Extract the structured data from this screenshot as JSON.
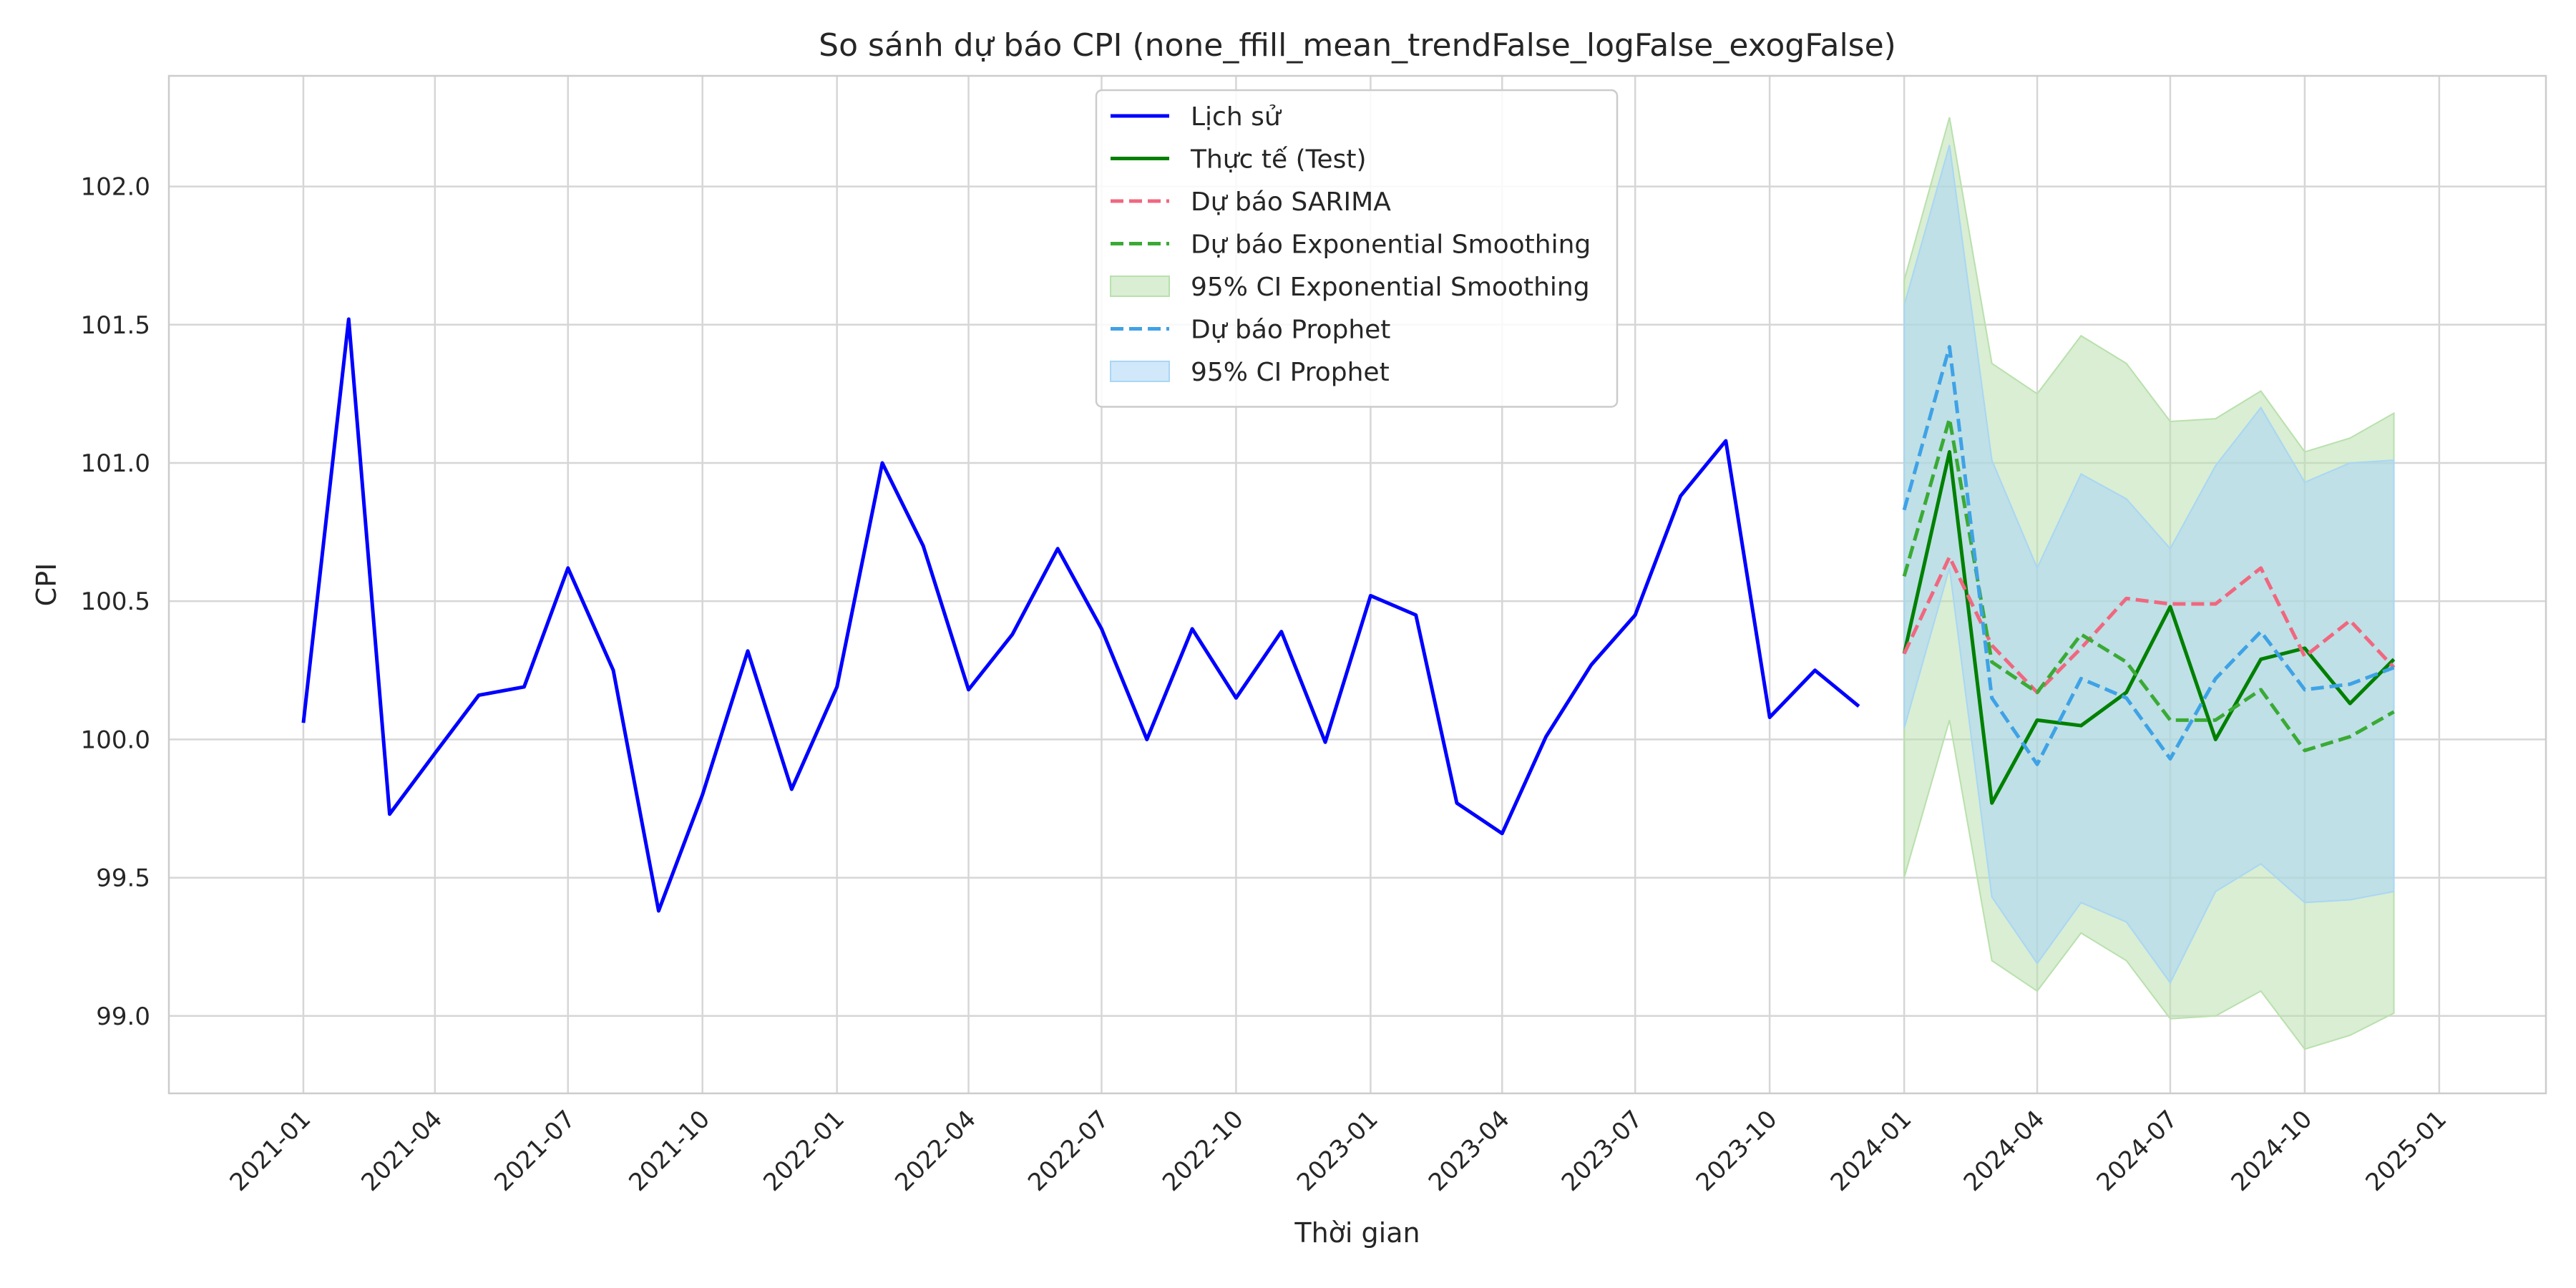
{
  "chart_data": {
    "type": "line",
    "title": "So sánh dự báo CPI (none_ffill_mean_trendFalse_logFalse_exogFalse)",
    "xlabel": "Thời gian",
    "ylabel": "CPI",
    "xlim": [
      "2020-10-01",
      "2025-03-15"
    ],
    "ylim": [
      98.72,
      102.4
    ],
    "grid": true,
    "legend_position": "top-center",
    "x_ticks": [
      "2021-01",
      "2021-04",
      "2021-07",
      "2021-10",
      "2022-01",
      "2022-04",
      "2022-07",
      "2022-10",
      "2023-01",
      "2023-04",
      "2023-07",
      "2023-10",
      "2024-01",
      "2024-04",
      "2024-07",
      "2024-10",
      "2025-01"
    ],
    "y_ticks": [
      99.0,
      99.5,
      100.0,
      100.5,
      101.0,
      101.5,
      102.0
    ],
    "series": [
      {
        "name": "Lịch sử",
        "style": "solid",
        "color": "#0000ff",
        "x": [
          "2021-01",
          "2021-02",
          "2021-03",
          "2021-04",
          "2021-05",
          "2021-06",
          "2021-07",
          "2021-08",
          "2021-09",
          "2021-10",
          "2021-11",
          "2021-12",
          "2022-01",
          "2022-02",
          "2022-03",
          "2022-04",
          "2022-05",
          "2022-06",
          "2022-07",
          "2022-08",
          "2022-09",
          "2022-10",
          "2022-11",
          "2022-12",
          "2023-01",
          "2023-02",
          "2023-03",
          "2023-04",
          "2023-05",
          "2023-06",
          "2023-07",
          "2023-08",
          "2023-09",
          "2023-10",
          "2023-11",
          "2023-12"
        ],
        "values": [
          100.06,
          101.52,
          99.73,
          99.95,
          100.16,
          100.19,
          100.62,
          100.25,
          99.38,
          99.8,
          100.32,
          99.82,
          100.19,
          101.0,
          100.7,
          100.18,
          100.38,
          100.69,
          100.4,
          100.0,
          100.4,
          100.15,
          100.39,
          99.99,
          100.52,
          100.45,
          99.77,
          99.66,
          100.01,
          100.27,
          100.45,
          100.88,
          101.08,
          100.08,
          100.25,
          100.12
        ]
      },
      {
        "name": "Thực tế (Test)",
        "style": "solid",
        "color": "#008000",
        "x": [
          "2024-01",
          "2024-02",
          "2024-03",
          "2024-04",
          "2024-05",
          "2024-06",
          "2024-07",
          "2024-08",
          "2024-09",
          "2024-10",
          "2024-11",
          "2024-12"
        ],
        "values": [
          100.31,
          101.04,
          99.77,
          100.07,
          100.05,
          100.17,
          100.48,
          100.0,
          100.29,
          100.33,
          100.13,
          100.29
        ]
      },
      {
        "name": "Dự báo SARIMA",
        "style": "dashed",
        "color": "#f0677f",
        "x": [
          "2024-01",
          "2024-02",
          "2024-03",
          "2024-04",
          "2024-05",
          "2024-06",
          "2024-07",
          "2024-08",
          "2024-09",
          "2024-10",
          "2024-11",
          "2024-12"
        ],
        "values": [
          100.31,
          100.66,
          100.34,
          100.17,
          100.33,
          100.51,
          100.49,
          100.49,
          100.62,
          100.3,
          100.43,
          100.26
        ]
      },
      {
        "name": "Dự báo Exponential Smoothing",
        "style": "dashed",
        "color": "#3aaa35",
        "x": [
          "2024-01",
          "2024-02",
          "2024-03",
          "2024-04",
          "2024-05",
          "2024-06",
          "2024-07",
          "2024-08",
          "2024-09",
          "2024-10",
          "2024-11",
          "2024-12"
        ],
        "values": [
          100.59,
          101.16,
          100.28,
          100.17,
          100.38,
          100.28,
          100.07,
          100.07,
          100.18,
          99.96,
          100.01,
          100.1
        ]
      },
      {
        "name": "Dự báo Prophet",
        "style": "dashed",
        "color": "#3fa2e6",
        "x": [
          "2024-01",
          "2024-02",
          "2024-03",
          "2024-04",
          "2024-05",
          "2024-06",
          "2024-07",
          "2024-08",
          "2024-09",
          "2024-10",
          "2024-11",
          "2024-12"
        ],
        "values": [
          100.83,
          101.42,
          100.15,
          99.91,
          100.22,
          100.15,
          99.93,
          100.22,
          100.39,
          100.18,
          100.2,
          100.26
        ]
      }
    ],
    "bands": [
      {
        "name": "95% CI Exponential Smoothing",
        "color": "#b9e0ad",
        "x": [
          "2024-01",
          "2024-02",
          "2024-03",
          "2024-04",
          "2024-05",
          "2024-06",
          "2024-07",
          "2024-08",
          "2024-09",
          "2024-10",
          "2024-11",
          "2024-12"
        ],
        "lower": [
          99.5,
          100.07,
          99.2,
          99.09,
          99.3,
          99.2,
          98.99,
          99.0,
          99.09,
          98.88,
          98.93,
          99.01
        ],
        "upper": [
          101.66,
          102.25,
          101.36,
          101.25,
          101.46,
          101.36,
          101.15,
          101.16,
          101.26,
          101.04,
          101.09,
          101.18
        ]
      },
      {
        "name": "95% CI Prophet",
        "color": "#a9d6f5",
        "x": [
          "2024-01",
          "2024-02",
          "2024-03",
          "2024-04",
          "2024-05",
          "2024-06",
          "2024-07",
          "2024-08",
          "2024-09",
          "2024-10",
          "2024-11",
          "2024-12"
        ],
        "lower": [
          100.04,
          100.62,
          99.43,
          99.19,
          99.41,
          99.34,
          99.12,
          99.45,
          99.55,
          99.41,
          99.42,
          99.45
        ],
        "upper": [
          101.57,
          102.15,
          101.01,
          100.62,
          100.96,
          100.87,
          100.69,
          100.99,
          101.2,
          100.93,
          101.0,
          101.01
        ]
      }
    ],
    "legend_order": [
      "Lịch sử",
      "Thực tế (Test)",
      "Dự báo SARIMA",
      "Dự báo Exponential Smoothing",
      "95% CI Exponential Smoothing",
      "Dự báo Prophet",
      "95% CI Prophet"
    ]
  }
}
